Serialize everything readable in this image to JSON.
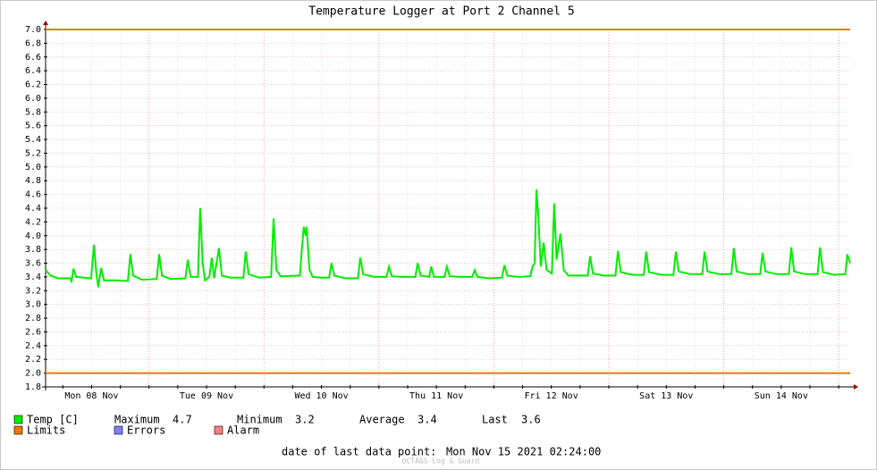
{
  "chart_data": {
    "type": "line",
    "title": "Temperature Logger at Port 2 Channel 5",
    "xlim": [
      2.4,
      170.4
    ],
    "xticks": [
      {
        "value": 12,
        "label": "Mon 08 Nov"
      },
      {
        "value": 36,
        "label": "Tue 09 Nov"
      },
      {
        "value": 60,
        "label": "Wed 10 Nov"
      },
      {
        "value": 84,
        "label": "Thu 11 Nov"
      },
      {
        "value": 108,
        "label": "Fri 12 Nov"
      },
      {
        "value": 132,
        "label": "Sat 13 Nov"
      },
      {
        "value": 156,
        "label": "Sun 14 Nov"
      }
    ],
    "xgrid": [
      6,
      12,
      18,
      24,
      30,
      36,
      42,
      48,
      54,
      60,
      66,
      72,
      78,
      84,
      90,
      96,
      102,
      108,
      114,
      120,
      126,
      132,
      138,
      144,
      150,
      156,
      162,
      168
    ],
    "ylim": [
      1.8,
      7.0
    ],
    "yticks": [
      1.8,
      {
        "value": 2,
        "label": "2.0"
      },
      2.2,
      2.4,
      2.6,
      2.8,
      {
        "value": 3,
        "label": "3.0"
      },
      3.2,
      3.4,
      3.6,
      3.8,
      {
        "value": 4,
        "label": "4.0"
      },
      4.2,
      4.4,
      4.6,
      4.8,
      {
        "value": 5,
        "label": "5.0"
      },
      5.2,
      5.4,
      5.6,
      5.8,
      {
        "value": 6,
        "label": "6.0"
      },
      6.2,
      6.4,
      6.6,
      6.8,
      {
        "value": 7,
        "label": "7.0"
      }
    ],
    "grid": true,
    "x": [
      2.4,
      3.4,
      5,
      7.6,
      7.8,
      8.2,
      8.8,
      11.9,
      12.5,
      13,
      13.4,
      14,
      14.6,
      17,
      19.6,
      20.1,
      20.7,
      22.5,
      25.6,
      26.1,
      26.7,
      28.5,
      31.6,
      32.1,
      32.7,
      34.2,
      34.5,
      34.7,
      35.2,
      35.7,
      36.6,
      37.1,
      37.6,
      38.6,
      39.2,
      41,
      43.7,
      44.2,
      44.8,
      47,
      49.5,
      50,
      50.6,
      51.5,
      55.5,
      55.9,
      56.3,
      56.7,
      56.9,
      57.5,
      58.2,
      60,
      61.6,
      62.1,
      62.7,
      65,
      67.6,
      68.1,
      68.7,
      71,
      73.6,
      74.1,
      74.7,
      77,
      79.6,
      80.1,
      80.7,
      82.5,
      82.9,
      83.5,
      85.7,
      86.2,
      86.8,
      89,
      91.5,
      92,
      92.6,
      95,
      97.7,
      98.2,
      98.8,
      101,
      103.6,
      104.1,
      104.5,
      104.9,
      105.3,
      105.8,
      106.4,
      107,
      108.1,
      108.6,
      109.1,
      109.9,
      110.6,
      111.5,
      115.6,
      116.1,
      116.7,
      119,
      121.4,
      121.9,
      122.5,
      125,
      127.3,
      127.8,
      128.4,
      131,
      133.5,
      134,
      134.6,
      137,
      139.5,
      140,
      140.6,
      143,
      145.6,
      146.1,
      146.7,
      149,
      151.6,
      152.1,
      152.7,
      155,
      157.6,
      158.1,
      158.7,
      161,
      163.6,
      164.1,
      164.7,
      167,
      169.4,
      169.8,
      170.4
    ],
    "series": [
      {
        "name": "Temp [C]",
        "color": "#00ee00",
        "values": [
          3.5,
          3.42,
          3.38,
          3.38,
          3.32,
          3.52,
          3.4,
          3.38,
          3.87,
          3.45,
          3.25,
          3.53,
          3.35,
          3.35,
          3.34,
          3.73,
          3.42,
          3.36,
          3.37,
          3.73,
          3.42,
          3.37,
          3.38,
          3.65,
          3.4,
          3.4,
          4.05,
          4.4,
          3.6,
          3.35,
          3.4,
          3.68,
          3.38,
          3.82,
          3.42,
          3.39,
          3.39,
          3.77,
          3.44,
          3.39,
          3.4,
          4.25,
          3.5,
          3.41,
          3.42,
          3.8,
          4.13,
          4.0,
          4.13,
          3.5,
          3.4,
          3.39,
          3.39,
          3.6,
          3.42,
          3.38,
          3.38,
          3.68,
          3.44,
          3.4,
          3.4,
          3.55,
          3.41,
          3.4,
          3.4,
          3.6,
          3.42,
          3.4,
          3.55,
          3.4,
          3.4,
          3.55,
          3.41,
          3.4,
          3.4,
          3.5,
          3.4,
          3.38,
          3.39,
          3.57,
          3.42,
          3.4,
          3.41,
          3.55,
          3.6,
          4.67,
          4.28,
          3.55,
          3.9,
          3.5,
          3.45,
          4.47,
          3.65,
          4.03,
          3.5,
          3.42,
          3.42,
          3.7,
          3.45,
          3.42,
          3.42,
          3.78,
          3.47,
          3.43,
          3.43,
          3.77,
          3.47,
          3.43,
          3.43,
          3.77,
          3.48,
          3.44,
          3.44,
          3.77,
          3.48,
          3.44,
          3.44,
          3.82,
          3.48,
          3.44,
          3.44,
          3.75,
          3.48,
          3.44,
          3.44,
          3.83,
          3.48,
          3.44,
          3.44,
          3.83,
          3.47,
          3.43,
          3.44,
          3.73,
          3.6
        ]
      },
      {
        "name": "Limits",
        "color": "#ee7700",
        "limits": [
          7,
          2
        ]
      }
    ],
    "legend_extra": [
      {
        "name": "Errors",
        "color": "#7f7fff"
      },
      {
        "name": "Alarm",
        "color": "#ff7f7f"
      }
    ],
    "stats": [
      {
        "label": "Maximum",
        "value": 4.7
      },
      {
        "label": "Minimum",
        "value": 3.2
      },
      {
        "label": "Average",
        "value": 3.4
      },
      {
        "label": "Last",
        "value": 3.6
      }
    ],
    "footer_label": "date of last data point:",
    "footer_date": "Mon Nov 15 2021 02:24:00",
    "watermark": "OCTA&S Log & Guard"
  }
}
